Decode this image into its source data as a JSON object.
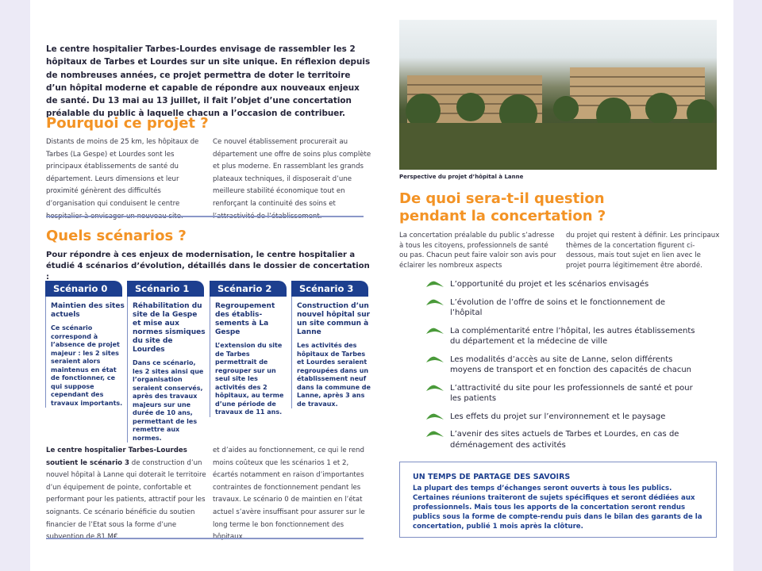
{
  "colors": {
    "accent": "#f39325",
    "brand": "#1d3f8f",
    "leaf": "#4a9a3a"
  },
  "intro": "Le centre hospitalier Tarbes-Lourdes envisage de rassembler les 2 hôpitaux de Tarbes et Lourdes sur un site unique. En réflexion depuis de nombreuses années, ce projet permettra de doter le territoire d’un hôpital moderne et capable de répondre aux nouveaux enjeux de santé. Du 13 mai au 13 juillet, il fait l’objet d’une concertation préalable du public à laquelle chacun a l’occasion de contribuer.",
  "pourquoi": {
    "title": "Pourquoi ce projet ?",
    "col1": "Distants de moins de 25 km, les hôpitaux de Tarbes (La Gespe) et Lourdes sont les principaux établissements de santé du département. Leurs dimensions et leur proximité génèrent des difficultés d’organisation qui conduisent le centre hospitalier à envisager un nouveau site.",
    "col2": "Ce nouvel établissement procurerait au département une offre de soins plus complète et plus moderne. En rassemblant les grands plateaux techniques, il disposerait d’une meilleure stabilité économique tout en renforçant la continuité des soins et l’attractivité de l’établissement."
  },
  "scenarios": {
    "title": "Quels scénarios ?",
    "lead": "Pour répondre à ces enjeux de modernisation, le centre hospitalier a étudié 4 scénarios d’évolution, détaillés dans le dossier de concertation :",
    "items": [
      {
        "label": "Scénario 0",
        "title": "Maintien des sites actuels",
        "desc": "Ce scénario correspond à l’absence de projet majeur : les 2 sites seraient alors maintenus en état de fonctionner, ce qui suppose cependant des travaux importants."
      },
      {
        "label": "Scénario 1",
        "title": "Réhabilitation du site de la Gespe et mise aux normes sismiques du site de Lourdes",
        "desc": "Dans ce scénario, les 2 sites ainsi que l’organisation seraient conservés, après des travaux majeurs sur une durée de 10 ans, permettant de les remettre aux normes."
      },
      {
        "label": "Scénario 2",
        "title": "Regroupement des établis-sements à La Gespe",
        "desc": "L’extension du site de Tarbes permettrait de regrouper sur un seul site les activités des 2 hôpitaux, au terme d’une période de travaux de 11 ans."
      },
      {
        "label": "Scénario 3",
        "title": "Construction d’un nouvel hôpital sur un site commun à Lanne",
        "desc": "Les activités des hôpitaux de Tarbes et Lourdes seraient regroupées dans un établissement neuf dans la commune de Lanne, après 3 ans de travaux."
      }
    ],
    "support_bold": "Le centre hospitalier Tarbes-Lourdes soutient le scénario 3",
    "support_rest": " de construction d’un nouvel hôpital à Lanne qui doterait le territoire d’un équipement de pointe, confortable et performant pour les patients, attractif pour les soignants. Ce scénario bénéficie du soutien financier de l’Etat sous la forme d’une subvention de 81 M€",
    "support_col2": "et d’aides au fonctionnement, ce qui le rend moins coûteux que les scénarios 1 et 2, écartés notamment en raison d’importantes contraintes de fonctionnement pendant les travaux. Le scénario 0 de maintien en l’état actuel s’avère insuffisant pour assurer sur le long terme le bon fonctionnement des hôpitaux."
  },
  "photo": {
    "caption": "Perspective du projet d’hôpital à Lanne"
  },
  "concertation": {
    "title": "De quoi sera-t-il question pendant la concertation ?",
    "col1": "La concertation préalable du public s’adresse à tous les citoyens, professionnels de santé ou pas. Chacun peut faire valoir son avis pour éclairer les nombreux aspects",
    "col2": "du projet qui restent à définir. Les principaux thèmes de la concertation figurent ci-dessous, mais tout sujet en lien avec le projet pourra légitimement être abordé.",
    "themes": [
      "L’opportunité du projet et les scénarios envisagés",
      "L’évolution de l’offre de soins et le fonctionnement de l’hôpital",
      "La complémentarité entre l’hôpital, les autres établissements du département et la médecine de ville",
      "Les modalités d’accès au site de Lanne, selon différents moyens de transport et en fonction des capacités de chacun",
      "L’attractivité du site pour les professionnels de santé et pour les patients",
      "Les effets du projet sur l’environnement et le paysage",
      "L’avenir des sites actuels de Tarbes et Lourdes, en cas de déménagement des activités"
    ],
    "themes_icon": "leaf-icon"
  },
  "savoirs": {
    "title": "UN TEMPS DE PARTAGE DES SAVOIRS",
    "text": "La plupart des temps d’échanges seront ouverts à tous les publics. Certaines réunions traiteront de sujets spécifiques et seront dédiées aux professionnels. Mais tous les apports de la concertation seront rendus publics sous la forme de compte-rendu puis dans le bilan des garants de la concertation, publié 1 mois après la clôture."
  }
}
